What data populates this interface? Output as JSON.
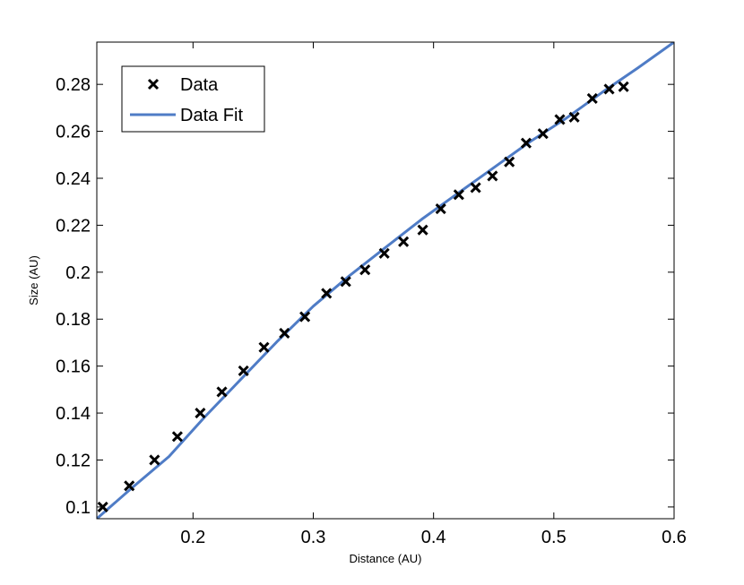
{
  "chart_data": {
    "type": "scatter",
    "xlabel": "Distance (AU)",
    "ylabel": "Size (AU)",
    "xlim": [
      0.12,
      0.6
    ],
    "ylim": [
      0.095,
      0.298
    ],
    "xticks": [
      0.2,
      0.3,
      0.4,
      0.5,
      0.6
    ],
    "xtick_labels": [
      "0.2",
      "0.3",
      "0.4",
      "0.5",
      "0.6"
    ],
    "yticks": [
      0.1,
      0.12,
      0.14,
      0.16,
      0.18,
      0.2,
      0.22,
      0.24,
      0.26,
      0.28
    ],
    "ytick_labels": [
      "0.1",
      "0.12",
      "0.14",
      "0.16",
      "0.18",
      "0.2",
      "0.22",
      "0.24",
      "0.26",
      "0.28"
    ],
    "grid": false,
    "legend": {
      "position": "top-left",
      "entries": [
        "Data",
        "Data Fit"
      ]
    },
    "series": [
      {
        "name": "Data",
        "kind": "markers",
        "marker": "x",
        "color": "#000000",
        "x": [
          0.125,
          0.147,
          0.168,
          0.187,
          0.206,
          0.224,
          0.242,
          0.259,
          0.276,
          0.293,
          0.311,
          0.327,
          0.343,
          0.359,
          0.375,
          0.391,
          0.406,
          0.421,
          0.435,
          0.449,
          0.463,
          0.477,
          0.491,
          0.505,
          0.517,
          0.532,
          0.546,
          0.558
        ],
        "y": [
          0.1,
          0.109,
          0.12,
          0.13,
          0.14,
          0.149,
          0.158,
          0.168,
          0.174,
          0.181,
          0.191,
          0.196,
          0.201,
          0.208,
          0.213,
          0.218,
          0.227,
          0.233,
          0.236,
          0.241,
          0.247,
          0.255,
          0.259,
          0.265,
          0.266,
          0.274,
          0.278,
          0.279
        ]
      },
      {
        "name": "Data Fit",
        "kind": "line",
        "color": "#4f7cc6",
        "x": [
          0.12,
          0.15,
          0.18,
          0.21,
          0.24,
          0.27,
          0.3,
          0.33,
          0.36,
          0.39,
          0.42,
          0.45,
          0.48,
          0.51,
          0.54,
          0.57,
          0.6
        ],
        "y": [
          0.095,
          0.1085,
          0.1215,
          0.1385,
          0.1545,
          0.1705,
          0.1855,
          0.1985,
          0.2105,
          0.2225,
          0.2335,
          0.2445,
          0.2555,
          0.2655,
          0.2765,
          0.287,
          0.298
        ]
      }
    ]
  }
}
